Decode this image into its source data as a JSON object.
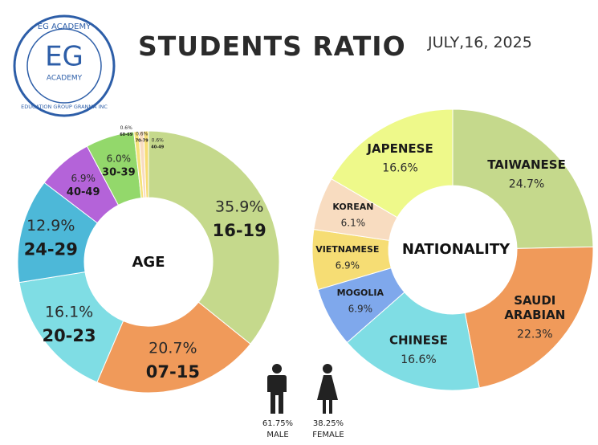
{
  "header": {
    "title": "STUDENTS RATIO",
    "date": "JULY,16, 2025"
  },
  "logo": {
    "top_text": "EG ACADEMY",
    "letters": "EG",
    "sub_text": "ACADEMY",
    "ring_text": "EDUCATION GROUP GRANMA INC"
  },
  "colors": {
    "green_light": "#c5d98c",
    "orange": "#f09a5a",
    "teal": "#7fdde4",
    "blue": "#4db8d8",
    "purple": "#b463d9",
    "green": "#93d86b",
    "yellow": "#f5e27a",
    "light_yellow": "#eef98a",
    "peach": "#f8dcc0",
    "gold": "#f6dd74",
    "cornflower": "#7fa8ec",
    "logo_blue": "#2d5ea8"
  },
  "chart_data": [
    {
      "type": "pie",
      "title": "AGE",
      "categories": [
        "16-19",
        "07-15",
        "20-23",
        "24-29",
        "40-49",
        "30-39",
        "60-69",
        "70-79",
        "40-49"
      ],
      "values": [
        35.9,
        20.7,
        16.1,
        12.9,
        6.9,
        6.0,
        0.6,
        0.6,
        0.6
      ],
      "value_labels": [
        "35.9%",
        "20.7%",
        "16.1%",
        "12.9%",
        "6.9%",
        "6.0%",
        "0.6%",
        "0.6%",
        "0.6%"
      ],
      "colors": [
        "#c5d98c",
        "#f09a5a",
        "#7fdde4",
        "#4db8d8",
        "#b463d9",
        "#93d86b",
        "#f5e27a",
        "#f8dcc0",
        "#f6dd74"
      ]
    },
    {
      "type": "pie",
      "title": "NATIONALITY",
      "categories": [
        "TAIWANESE",
        "SAUDI ARABIAN",
        "CHINESE",
        "MOGOLIA",
        "VIETNAMESE",
        "KOREAN",
        "JAPENESE"
      ],
      "values": [
        24.7,
        22.3,
        16.6,
        6.9,
        6.9,
        6.1,
        16.6
      ],
      "value_labels": [
        "24.7%",
        "22.3%",
        "16.6%",
        "6.9%",
        "6.9%",
        "6.1%",
        "16.6%"
      ],
      "colors": [
        "#c5d98c",
        "#f09a5a",
        "#7fdde4",
        "#7fa8ec",
        "#f6dd74",
        "#f8dcc0",
        "#eef98a"
      ]
    }
  ],
  "gender": {
    "male": {
      "percent": "61.75%",
      "label": "MALE"
    },
    "female": {
      "percent": "38.25%",
      "label": "FEMALE"
    }
  }
}
